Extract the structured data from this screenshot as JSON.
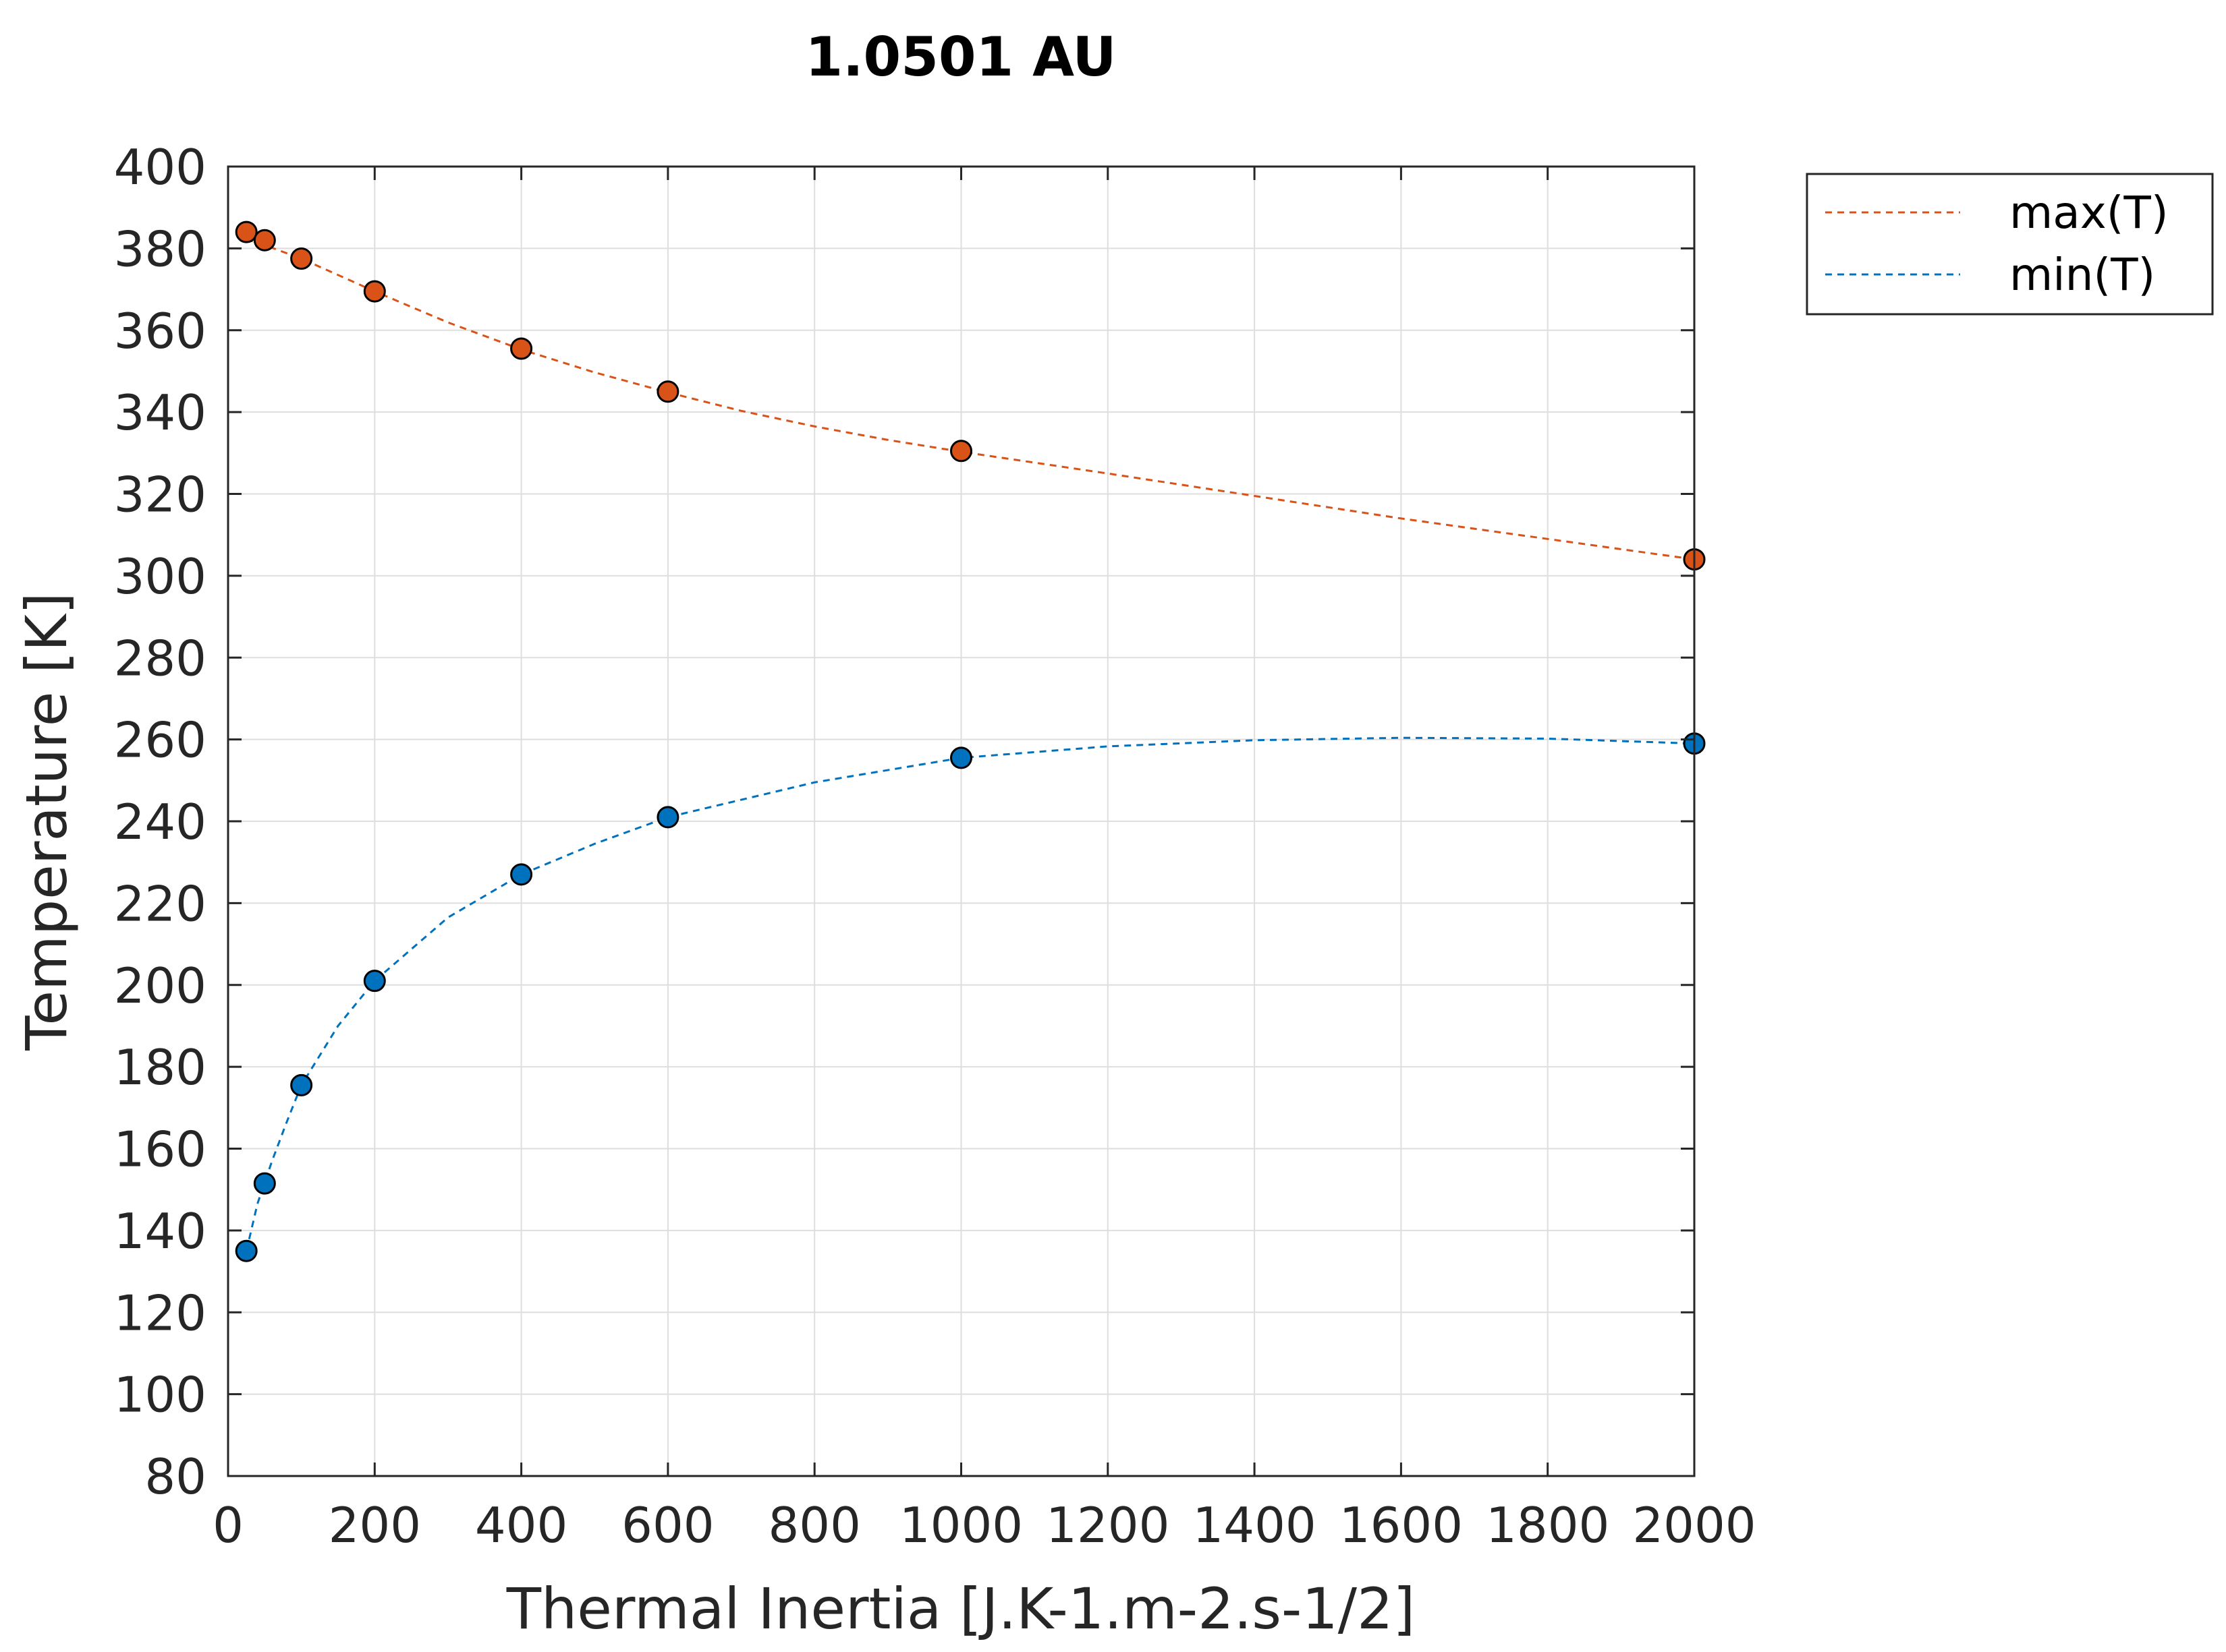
{
  "chart_data": {
    "type": "scatter",
    "title": "1.0501 AU",
    "xlabel": "Thermal Inertia [J.K-1.m-2.s-1/2]",
    "ylabel": "Temperature [K]",
    "xlim": [
      0,
      2000
    ],
    "ylim": [
      80,
      400
    ],
    "xticks": [
      "0",
      "200",
      "400",
      "600",
      "800",
      "1000",
      "1200",
      "1400",
      "1600",
      "1800",
      "2000"
    ],
    "yticks": [
      "80",
      "100",
      "120",
      "140",
      "160",
      "180",
      "200",
      "220",
      "240",
      "260",
      "280",
      "300",
      "320",
      "340",
      "360",
      "380",
      "400"
    ],
    "grid": true,
    "legend_position": "outside-top-right",
    "x": [
      25,
      50,
      100,
      200,
      400,
      600,
      1000,
      2000
    ],
    "series": [
      {
        "name": "max(T)",
        "color": "#d95319",
        "values": [
          384,
          382,
          377.5,
          369.5,
          355.5,
          345,
          330.5,
          304
        ],
        "fit": [
          [
            25,
            382.2
          ],
          [
            50,
            380.8
          ],
          [
            100,
            377.5
          ],
          [
            200,
            369.5
          ],
          [
            300,
            361.9
          ],
          [
            400,
            355.3
          ],
          [
            500,
            349.7
          ],
          [
            600,
            344.8
          ],
          [
            700,
            340.3
          ],
          [
            800,
            336.5
          ],
          [
            900,
            333.2
          ],
          [
            1000,
            330.3
          ],
          [
            1200,
            325
          ],
          [
            1400,
            319.5
          ],
          [
            1600,
            314
          ],
          [
            1800,
            309
          ],
          [
            2000,
            304
          ]
        ]
      },
      {
        "name": "min(T)",
        "color": "#0072bd",
        "values": [
          135,
          151.5,
          175.5,
          201,
          227,
          241,
          255.5,
          259
        ],
        "fit": [
          [
            25,
            135
          ],
          [
            40,
            146.5
          ],
          [
            60,
            157
          ],
          [
            80,
            166.5
          ],
          [
            100,
            175.5
          ],
          [
            150,
            190
          ],
          [
            200,
            201
          ],
          [
            300,
            216.5
          ],
          [
            400,
            227
          ],
          [
            500,
            234.5
          ],
          [
            600,
            241
          ],
          [
            800,
            249.5
          ],
          [
            1000,
            255.5
          ],
          [
            1200,
            258.3
          ],
          [
            1400,
            259.8
          ],
          [
            1600,
            260.4
          ],
          [
            1800,
            260.2
          ],
          [
            2000,
            259
          ]
        ]
      }
    ]
  }
}
